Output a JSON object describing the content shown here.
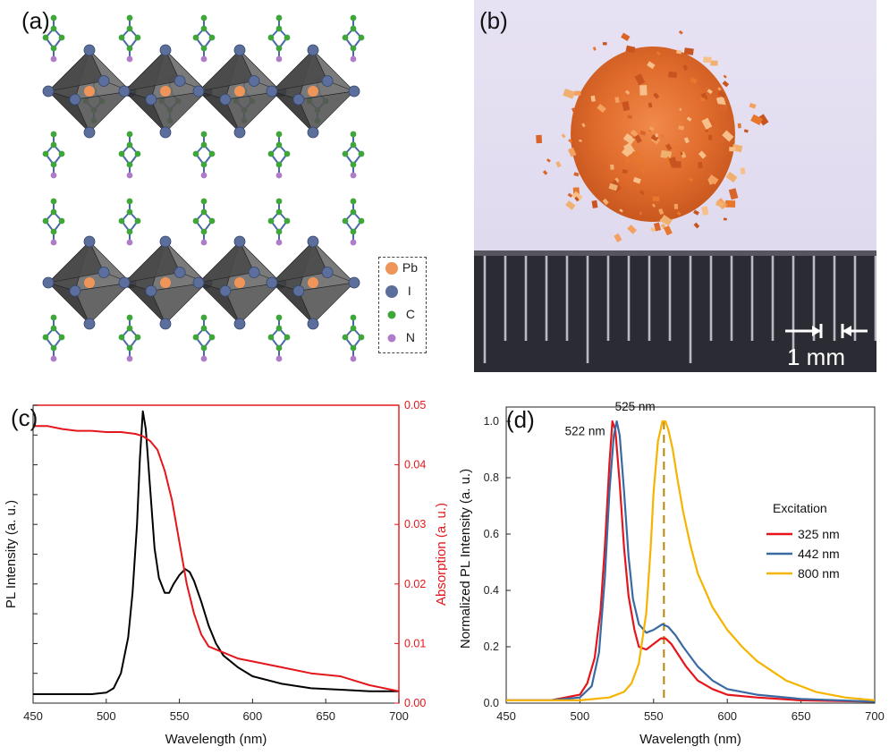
{
  "panels": {
    "a": {
      "label": "(a)",
      "legend": [
        {
          "symbol": "Pb",
          "color": "#f0955a"
        },
        {
          "symbol": "I",
          "color": "#5b6e9c"
        },
        {
          "symbol": "C",
          "color": "#3fa63a"
        },
        {
          "symbol": "N",
          "color": "#b07cc8"
        }
      ]
    },
    "b": {
      "label": "(b)",
      "scale_label": "1 mm"
    },
    "c": {
      "label": "(c)"
    },
    "d": {
      "label": "(d)"
    }
  },
  "chart_data": [
    {
      "id": "c",
      "type": "line",
      "xlabel": "Wavelength (nm)",
      "ylabel": "PL Intensity (a. u.)",
      "ylabel_right": "Absorption (a. u.)",
      "xlim": [
        450,
        700
      ],
      "xticks": [
        450,
        500,
        550,
        600,
        650,
        700
      ],
      "ylim_right": [
        0.0,
        0.05
      ],
      "yticks_right": [
        "0.00",
        "0.01",
        "0.02",
        "0.03",
        "0.04",
        "0.05"
      ],
      "series": [
        {
          "axis": "left",
          "color": "#000000",
          "x": [
            450,
            470,
            490,
            500,
            505,
            510,
            515,
            518,
            521,
            523,
            525,
            527,
            530,
            533,
            536,
            540,
            543,
            546,
            550,
            554,
            557,
            560,
            565,
            570,
            575,
            580,
            590,
            600,
            620,
            640,
            660,
            680,
            700
          ],
          "y": [
            0.03,
            0.03,
            0.03,
            0.035,
            0.05,
            0.1,
            0.22,
            0.37,
            0.6,
            0.82,
            0.98,
            0.92,
            0.72,
            0.52,
            0.42,
            0.37,
            0.37,
            0.4,
            0.43,
            0.45,
            0.44,
            0.41,
            0.34,
            0.26,
            0.2,
            0.16,
            0.12,
            0.09,
            0.065,
            0.05,
            0.045,
            0.04,
            0.04
          ]
        },
        {
          "axis": "right",
          "color": "#e4161b",
          "x": [
            450,
            460,
            470,
            480,
            490,
            500,
            510,
            520,
            525,
            530,
            535,
            540,
            545,
            550,
            555,
            560,
            565,
            570,
            580,
            590,
            600,
            620,
            640,
            660,
            680,
            700
          ],
          "y": [
            0.0465,
            0.0465,
            0.046,
            0.0457,
            0.0457,
            0.0455,
            0.0455,
            0.0452,
            0.0448,
            0.044,
            0.0425,
            0.039,
            0.034,
            0.027,
            0.02,
            0.015,
            0.0115,
            0.0095,
            0.0085,
            0.0075,
            0.007,
            0.006,
            0.005,
            0.0045,
            0.003,
            0.002
          ]
        }
      ]
    },
    {
      "id": "d",
      "type": "line",
      "xlabel": "Wavelength (nm)",
      "ylabel": "Normalized PL Intensity (a. u.)",
      "xlim": [
        450,
        700
      ],
      "xticks": [
        450,
        500,
        550,
        600,
        650,
        700
      ],
      "ylim": [
        0.0,
        1.0
      ],
      "yticks": [
        "0.0",
        "0.2",
        "0.4",
        "0.6",
        "0.8",
        "1.0"
      ],
      "legend_title": "Excitation",
      "annotations": [
        "522 nm",
        "525 nm"
      ],
      "dashed_marker_x": 557,
      "series": [
        {
          "name": "325 nm",
          "color": "#e4161b",
          "x": [
            450,
            480,
            500,
            505,
            510,
            514,
            517,
            520,
            522,
            524,
            527,
            530,
            533,
            537,
            540,
            545,
            550,
            555,
            558,
            562,
            567,
            572,
            580,
            590,
            600,
            620,
            650,
            700
          ],
          "y": [
            0.01,
            0.01,
            0.03,
            0.07,
            0.16,
            0.33,
            0.56,
            0.85,
            1.0,
            0.97,
            0.78,
            0.55,
            0.38,
            0.26,
            0.2,
            0.19,
            0.21,
            0.23,
            0.23,
            0.21,
            0.17,
            0.13,
            0.08,
            0.05,
            0.03,
            0.02,
            0.01,
            0.005
          ]
        },
        {
          "name": "442 nm",
          "color": "#3a6aa3",
          "x": [
            450,
            480,
            500,
            508,
            513,
            517,
            520,
            523,
            525,
            527,
            530,
            533,
            536,
            540,
            545,
            550,
            556,
            560,
            565,
            570,
            580,
            590,
            600,
            620,
            650,
            700
          ],
          "y": [
            0.01,
            0.01,
            0.02,
            0.06,
            0.18,
            0.45,
            0.75,
            0.95,
            1.0,
            0.95,
            0.75,
            0.52,
            0.37,
            0.28,
            0.25,
            0.26,
            0.28,
            0.27,
            0.24,
            0.2,
            0.13,
            0.08,
            0.05,
            0.03,
            0.015,
            0.005
          ]
        },
        {
          "name": "800 nm",
          "color": "#f4b400",
          "x": [
            450,
            500,
            520,
            530,
            535,
            540,
            545,
            548,
            550,
            553,
            556,
            558,
            560,
            563,
            566,
            570,
            575,
            580,
            590,
            600,
            610,
            620,
            640,
            660,
            680,
            700
          ],
          "y": [
            0.01,
            0.01,
            0.02,
            0.04,
            0.07,
            0.14,
            0.32,
            0.55,
            0.75,
            0.93,
            1.0,
            1.0,
            0.97,
            0.9,
            0.8,
            0.68,
            0.56,
            0.46,
            0.34,
            0.26,
            0.2,
            0.15,
            0.08,
            0.04,
            0.02,
            0.01
          ]
        }
      ]
    }
  ]
}
